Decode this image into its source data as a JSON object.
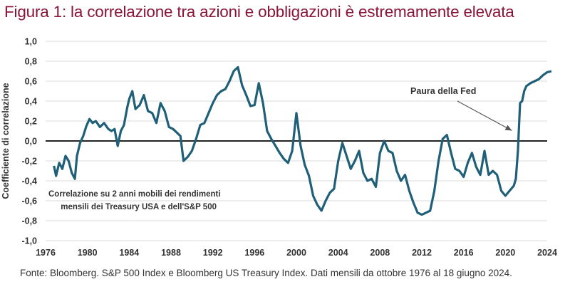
{
  "title": "Figura 1: la correlazione tra azioni e obbligazioni è estremamente elevata",
  "source": "Fonte: Bloomberg. S&P 500 Index e Bloomberg US Treasury Index. Dati mensili da ottobre 1976 al 18 giugno 2024.",
  "colors": {
    "title": "#8a1538",
    "line": "#1f5f78",
    "zero_line": "#222222",
    "grid": "#d9d9d9"
  },
  "chart_data": {
    "type": "line",
    "ylabel": "Coefficiente di correlazione",
    "ylim": [
      -1.0,
      1.0
    ],
    "xlim": [
      1976,
      2024
    ],
    "grid": "horizontal",
    "x_ticks": [
      "1976",
      "1980",
      "1984",
      "1988",
      "1992",
      "1996",
      "2000",
      "2004",
      "2008",
      "2012",
      "2016",
      "2020",
      "2024"
    ],
    "y_ticks": [
      "1,0",
      "0,8",
      "0,6",
      "0,4",
      "0,2",
      "0,0",
      "-0,2",
      "-0,4",
      "-0,6",
      "-0,8",
      "-1,0"
    ],
    "annotation": {
      "label": "Paura della Fed",
      "x": 2021.3,
      "y": 0.14
    },
    "note_lines": [
      "Correlazione su 2 anni mobili dei rendimenti",
      "mensili dei Treasury USA e dell'S&P 500"
    ],
    "series": [
      {
        "x": [
          1976.8,
          1977.0,
          1977.3,
          1977.6,
          1977.9,
          1978.2,
          1978.5,
          1978.8,
          1979.0,
          1979.3,
          1979.6,
          1979.9,
          1980.2,
          1980.5,
          1980.8,
          1981.2,
          1981.6,
          1982.0,
          1982.3,
          1982.6,
          1982.9,
          1983.2,
          1983.5,
          1983.8,
          1984.0,
          1984.3,
          1984.6,
          1985.0,
          1985.4,
          1985.8,
          1986.2,
          1986.6,
          1987.0,
          1987.4,
          1987.8,
          1988.2,
          1988.6,
          1988.9,
          1989.2,
          1989.6,
          1990.0,
          1990.4,
          1990.8,
          1991.2,
          1991.6,
          1992.0,
          1992.4,
          1992.8,
          1993.2,
          1993.6,
          1994.0,
          1994.4,
          1994.8,
          1995.2,
          1995.6,
          1996.0,
          1996.4,
          1996.8,
          1997.2,
          1997.6,
          1998.0,
          1998.4,
          1998.8,
          1999.2,
          1999.6,
          2000.0,
          2000.4,
          2000.8,
          2001.2,
          2001.6,
          2002.0,
          2002.4,
          2002.8,
          2003.2,
          2003.6,
          2004.0,
          2004.4,
          2004.8,
          2005.2,
          2005.6,
          2006.0,
          2006.4,
          2006.8,
          2007.2,
          2007.6,
          2008.0,
          2008.4,
          2008.8,
          2009.2,
          2009.6,
          2010.0,
          2010.4,
          2010.8,
          2011.2,
          2011.6,
          2012.0,
          2012.4,
          2012.8,
          2013.2,
          2013.6,
          2014.0,
          2014.4,
          2014.8,
          2015.2,
          2015.6,
          2016.0,
          2016.4,
          2016.8,
          2017.2,
          2017.6,
          2018.0,
          2018.4,
          2018.8,
          2019.2,
          2019.6,
          2020.0,
          2020.4,
          2020.8,
          2021.0,
          2021.2,
          2021.4,
          2021.6,
          2021.8,
          2022.0,
          2022.4,
          2022.8,
          2023.2,
          2023.6,
          2024.0,
          2024.4
        ],
        "y": [
          -0.25,
          -0.35,
          -0.22,
          -0.28,
          -0.15,
          -0.2,
          -0.32,
          -0.38,
          -0.15,
          -0.02,
          0.05,
          0.15,
          0.22,
          0.18,
          0.2,
          0.14,
          0.18,
          0.12,
          0.1,
          0.12,
          -0.05,
          0.1,
          0.16,
          0.33,
          0.42,
          0.5,
          0.32,
          0.36,
          0.46,
          0.3,
          0.28,
          0.18,
          0.38,
          0.3,
          0.14,
          0.12,
          0.08,
          0.05,
          -0.2,
          -0.16,
          -0.1,
          0.02,
          0.16,
          0.18,
          0.28,
          0.38,
          0.46,
          0.5,
          0.52,
          0.6,
          0.7,
          0.74,
          0.56,
          0.46,
          0.35,
          0.36,
          0.58,
          0.38,
          0.1,
          0.02,
          -0.05,
          -0.12,
          -0.18,
          -0.22,
          -0.1,
          0.28,
          -0.05,
          -0.24,
          -0.35,
          -0.55,
          -0.64,
          -0.7,
          -0.6,
          -0.52,
          -0.48,
          -0.2,
          -0.02,
          -0.15,
          -0.28,
          -0.2,
          -0.1,
          -0.32,
          -0.4,
          -0.38,
          -0.46,
          -0.12,
          0.0,
          -0.1,
          -0.12,
          -0.3,
          -0.4,
          -0.34,
          -0.5,
          -0.62,
          -0.72,
          -0.74,
          -0.72,
          -0.7,
          -0.5,
          -0.2,
          0.02,
          0.06,
          -0.12,
          -0.28,
          -0.3,
          -0.36,
          -0.22,
          -0.12,
          -0.26,
          -0.34,
          -0.1,
          -0.34,
          -0.3,
          -0.34,
          -0.5,
          -0.55,
          -0.5,
          -0.45,
          -0.38,
          -0.1,
          0.38,
          0.4,
          0.5,
          0.55,
          0.58,
          0.6,
          0.62,
          0.66,
          0.69,
          0.7
        ]
      }
    ]
  }
}
